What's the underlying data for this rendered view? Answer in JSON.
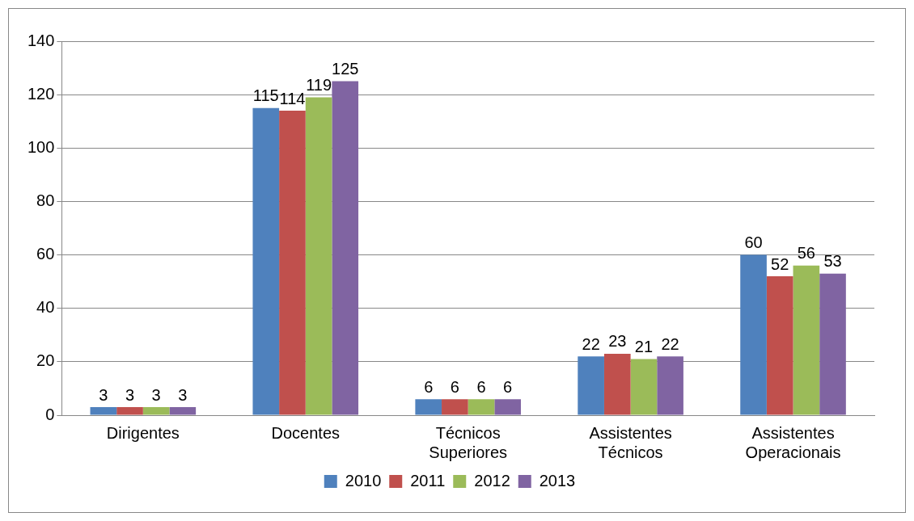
{
  "chart_data": {
    "type": "bar",
    "categories": [
      "Dirigentes",
      "Docentes",
      "Técnicos Superiores",
      "Assistentes Técnicos",
      "Assistentes Operacionais"
    ],
    "series": [
      {
        "name": "2010",
        "color": "#4f81bd",
        "values": [
          3,
          115,
          6,
          22,
          60
        ]
      },
      {
        "name": "2011",
        "color": "#c0504d",
        "values": [
          3,
          114,
          6,
          23,
          52
        ]
      },
      {
        "name": "2012",
        "color": "#9bbb59",
        "values": [
          3,
          119,
          6,
          21,
          56
        ]
      },
      {
        "name": "2013",
        "color": "#8064a2",
        "values": [
          3,
          125,
          6,
          22,
          53
        ]
      }
    ],
    "ylim": [
      0,
      140
    ],
    "yticks": [
      0,
      20,
      40,
      60,
      80,
      100,
      120,
      140
    ],
    "grid": "y",
    "legend": "bottom",
    "data_labels": true
  }
}
